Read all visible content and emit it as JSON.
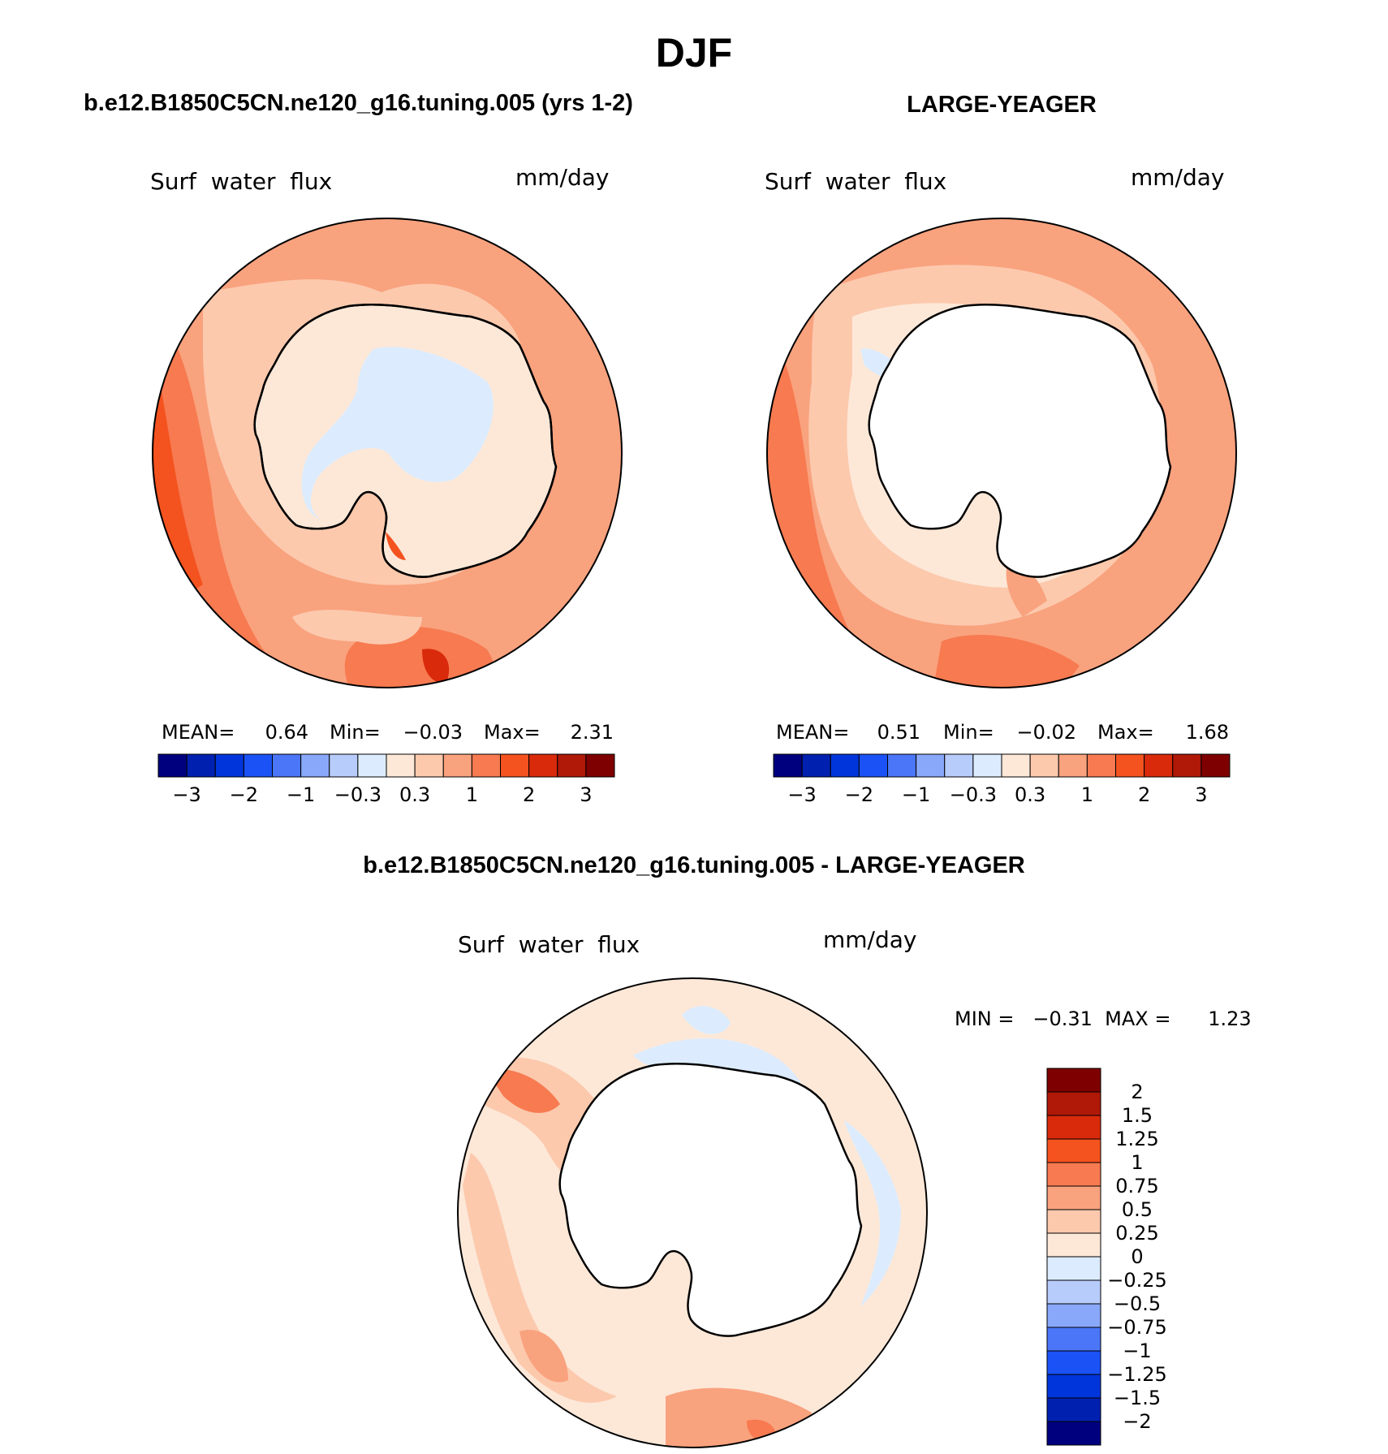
{
  "header": {
    "season": "DJF"
  },
  "palette_abs": [
    "#00007f",
    "#0020b0",
    "#0035db",
    "#1a52f5",
    "#4a76f7",
    "#8aa8f9",
    "#b8ccfb",
    "#dcecfe",
    "#fde8d8",
    "#fcc9ad",
    "#f9a27e",
    "#f77a50",
    "#f4521f",
    "#d92a0b",
    "#b01807",
    "#7e0000"
  ],
  "palette_diff": [
    "#00007f",
    "#0020b0",
    "#0035db",
    "#1a52f5",
    "#4a76f7",
    "#8aa8f9",
    "#b8ccfb",
    "#dcecfe",
    "#fde8d8",
    "#fcc9ad",
    "#f9a27e",
    "#f77a50",
    "#f4521f",
    "#d92a0b",
    "#b01807",
    "#7e0000"
  ],
  "panels": {
    "model": {
      "title": "b.e12.B1850C5CN.ne120_g16.tuning.005 (yrs 1-2)",
      "variable": "Surf  water  flux",
      "units": "mm/day",
      "stats": {
        "mean_label": "MEAN=",
        "mean": "0.64",
        "min_label": "Min=",
        "min": "−0.03",
        "max_label": "Max=",
        "max": "2.31"
      },
      "colorbar_ticks": [
        "−3",
        "−2",
        "−1",
        "−0.3",
        "0.3",
        "1",
        "2",
        "3"
      ]
    },
    "obs": {
      "title": "LARGE-YEAGER",
      "variable": "Surf  water  flux",
      "units": "mm/day",
      "stats": {
        "mean_label": "MEAN=",
        "mean": "0.51",
        "min_label": "Min=",
        "min": "−0.02",
        "max_label": "Max=",
        "max": "1.68"
      },
      "colorbar_ticks": [
        "−3",
        "−2",
        "−1",
        "−0.3",
        "0.3",
        "1",
        "2",
        "3"
      ]
    },
    "diff": {
      "title": "b.e12.B1850C5CN.ne120_g16.tuning.005 - LARGE-YEAGER",
      "variable": "Surf  water  flux",
      "units": "mm/day",
      "minmax": "MIN =   −0.31  MAX =      1.23",
      "colorbar_ticks": [
        "2",
        "1.5",
        "1.25",
        "1",
        "0.75",
        "0.5",
        "0.25",
        "0",
        "−0.25",
        "−0.5",
        "−0.75",
        "−1",
        "−1.25",
        "−1.5",
        "−2"
      ]
    }
  }
}
